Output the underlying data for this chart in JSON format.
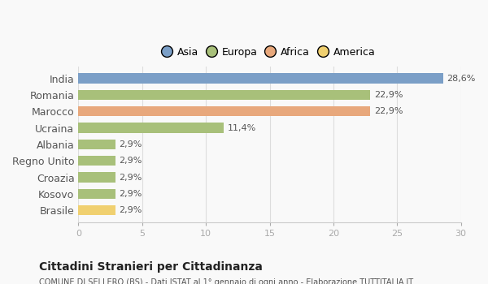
{
  "categories": [
    "India",
    "Romania",
    "Marocco",
    "Ucraina",
    "Albania",
    "Regno Unito",
    "Croazia",
    "Kosovo",
    "Brasile"
  ],
  "values": [
    28.6,
    22.9,
    22.9,
    11.4,
    2.9,
    2.9,
    2.9,
    2.9,
    2.9
  ],
  "colors": [
    "#7b9fc7",
    "#a8c07a",
    "#e8a87c",
    "#a8c07a",
    "#a8c07a",
    "#a8c07a",
    "#a8c07a",
    "#a8c07a",
    "#f0d070"
  ],
  "labels": [
    "28,6%",
    "22,9%",
    "22,9%",
    "11,4%",
    "2,9%",
    "2,9%",
    "2,9%",
    "2,9%",
    "2,9%"
  ],
  "legend_labels": [
    "Asia",
    "Europa",
    "Africa",
    "America"
  ],
  "legend_colors": [
    "#7b9fc7",
    "#a8c07a",
    "#e8a87c",
    "#f0d070"
  ],
  "xlim": [
    0,
    30
  ],
  "xticks": [
    0,
    5,
    10,
    15,
    20,
    25,
    30
  ],
  "title": "Cittadini Stranieri per Cittadinanza",
  "subtitle": "COMUNE DI SELLERO (BS) - Dati ISTAT al 1° gennaio di ogni anno - Elaborazione TUTTITALIA.IT",
  "background_color": "#f9f9f9",
  "bar_height": 0.6
}
